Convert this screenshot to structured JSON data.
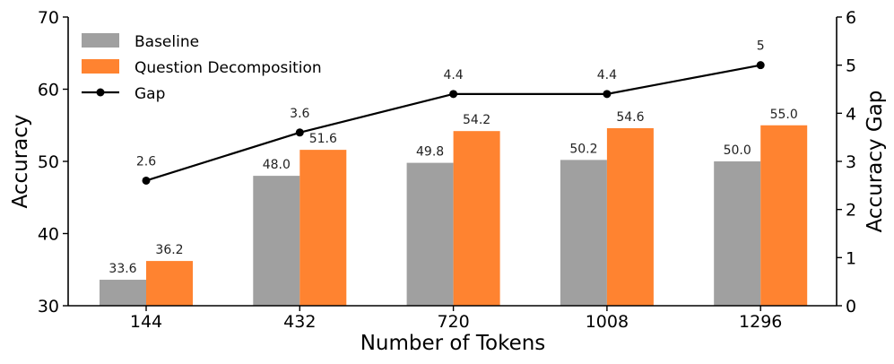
{
  "chart_data": {
    "type": "bar",
    "xlabel": "Number of Tokens",
    "ylabel": "Accuracy",
    "y2label": "Accuracy Gap",
    "categories": [
      "144",
      "432",
      "720",
      "1008",
      "1296"
    ],
    "ylim": [
      30,
      70
    ],
    "y2lim": [
      0,
      6
    ],
    "yticks": [
      30,
      40,
      50,
      60,
      70
    ],
    "y2ticks": [
      0,
      1,
      2,
      3,
      4,
      5,
      6
    ],
    "grid": false,
    "legend_position": "top-left",
    "series": [
      {
        "name": "Baseline",
        "kind": "bar",
        "color": "#a0a0a0",
        "values": [
          33.6,
          48.0,
          49.8,
          50.2,
          50.0
        ],
        "labels": [
          "33.6",
          "48.0",
          "49.8",
          "50.2",
          "50.0"
        ]
      },
      {
        "name": "Question Decomposition",
        "kind": "bar",
        "color": "#ff8330",
        "values": [
          36.2,
          51.6,
          54.2,
          54.6,
          55.0
        ],
        "labels": [
          "36.2",
          "51.6",
          "54.2",
          "54.6",
          "55.0"
        ]
      },
      {
        "name": "Gap",
        "kind": "line",
        "axis": "right",
        "color": "#000000",
        "values": [
          2.6,
          3.6,
          4.4,
          4.4,
          5
        ],
        "labels": [
          "2.6",
          "3.6",
          "4.4",
          "4.4",
          "5"
        ]
      }
    ]
  }
}
